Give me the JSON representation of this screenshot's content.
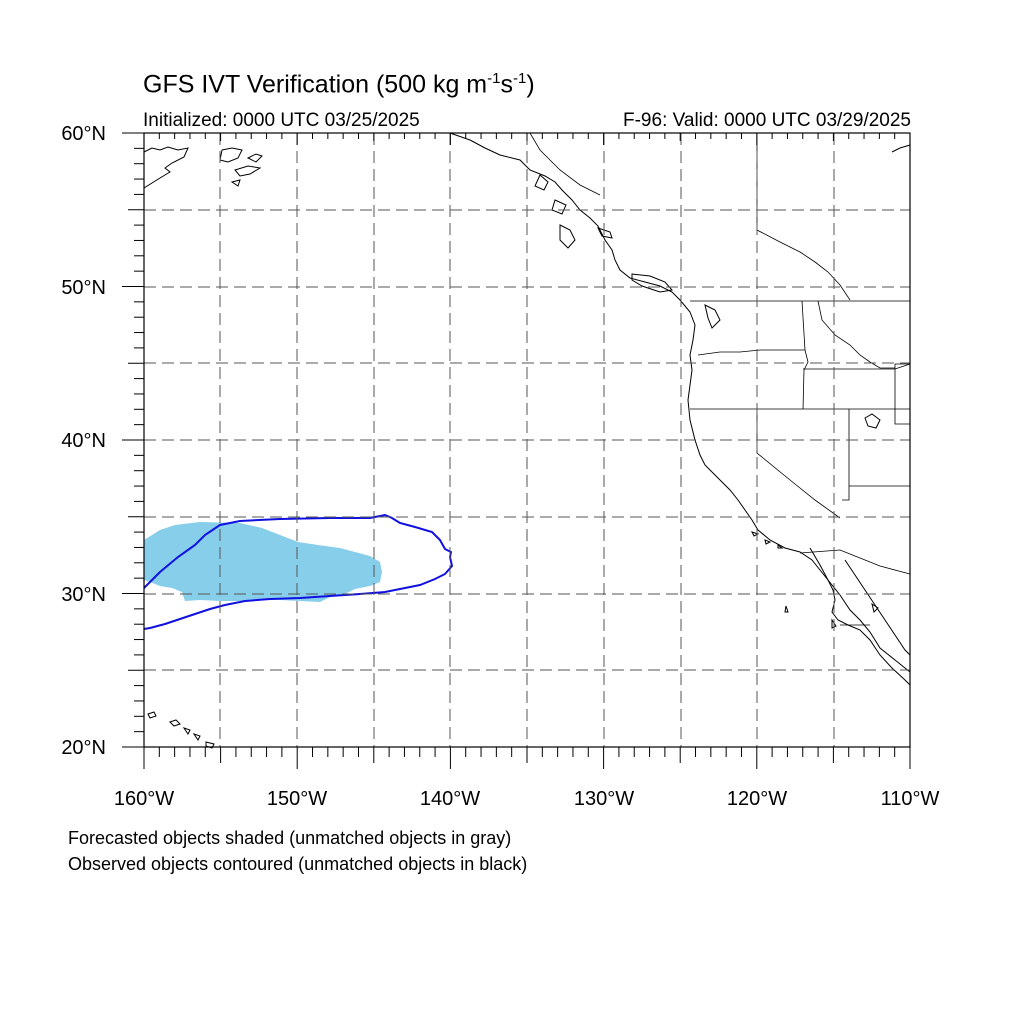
{
  "header": {
    "title_main": "GFS IVT Verification (500 kg m",
    "title_sup1": "-1",
    "title_mid": "s",
    "title_sup2": "-1",
    "title_end": ")",
    "initialized": "Initialized: 0000 UTC 03/25/2025",
    "valid": "F-96: Valid: 0000 UTC 03/29/2025"
  },
  "axes": {
    "lon_labels": [
      "160°W",
      "150°W",
      "140°W",
      "130°W",
      "120°W",
      "110°W"
    ],
    "lat_labels": [
      "60°N",
      "50°N",
      "40°N",
      "30°N",
      "20°N"
    ]
  },
  "map": {
    "lon_range": [
      -160,
      -110
    ],
    "lat_range": [
      20,
      60
    ],
    "grid_spacing_deg": 5,
    "grid_style": "dashed",
    "forecast_fill_color": "#87CEEB",
    "observed_contour_color": "#1010E0"
  },
  "notes": {
    "line1": "Forecasted objects shaded (unmatched objects in gray)",
    "line2": "Observed objects contoured (unmatched objects in black)"
  }
}
